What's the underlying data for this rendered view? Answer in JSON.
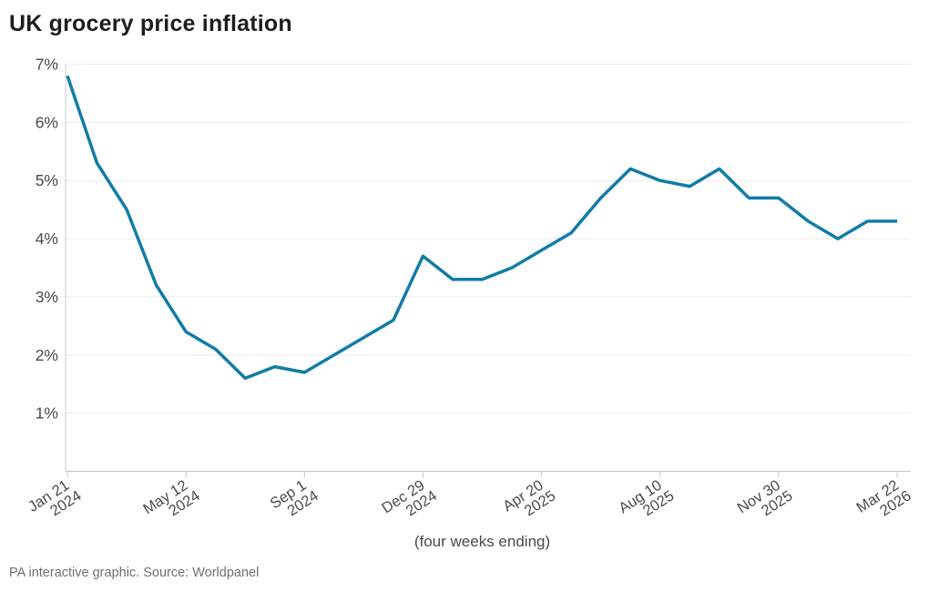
{
  "page": {
    "title": "UK grocery price inflation",
    "footer": "PA interactive graphic. Source: Worldpanel"
  },
  "chart_data": {
    "type": "line",
    "title": "UK grocery price inflation",
    "xlabel": "(four weeks ending)",
    "ylabel": "",
    "unit": "%",
    "series_name": "UK grocery price inflation",
    "values": [
      6.8,
      5.3,
      4.5,
      3.2,
      2.4,
      2.1,
      1.6,
      1.8,
      1.7,
      2.0,
      2.3,
      2.6,
      3.7,
      3.3,
      3.3,
      3.5,
      3.8,
      4.1,
      4.7,
      5.2,
      5.0,
      4.9,
      5.2,
      4.7,
      4.7,
      4.3,
      4.0,
      4.3,
      4.3
    ],
    "x_tick_indices": [
      0,
      4,
      8,
      12,
      16,
      20,
      24,
      28
    ],
    "x_tick_labels": [
      [
        "Jan 21",
        "2024"
      ],
      [
        "May 12",
        "2024"
      ],
      [
        "Sep 1",
        "2024"
      ],
      [
        "Dec 29",
        "2024"
      ],
      [
        "Apr 20",
        "2025"
      ],
      [
        "Aug 10",
        "2025"
      ],
      [
        "Nov 30",
        "2025"
      ],
      [
        "Mar 22",
        "2026"
      ]
    ],
    "y_ticks": [
      1,
      2,
      3,
      4,
      5,
      6,
      7
    ],
    "y_tick_suffix": "%",
    "ylim": [
      0,
      7
    ],
    "grid": "horizontal-only",
    "legend": "none",
    "line_color": "#117ca6",
    "grid_color": "#ececec",
    "axis_color": "#c8c8c8",
    "label_color": "#4a4a4a",
    "title_color": "#1d1d1b"
  }
}
